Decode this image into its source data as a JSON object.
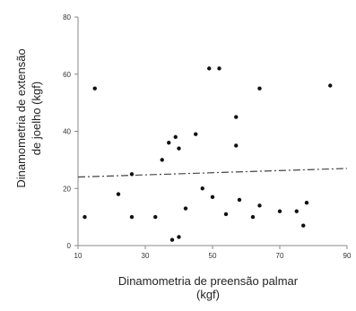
{
  "chart_data": {
    "type": "scatter",
    "title": "",
    "xlabel_lines": [
      "Dinamometria de preensão palmar",
      "(kgf)"
    ],
    "ylabel_lines": [
      "Dinamometria de extensão",
      "de joelho (kgf)"
    ],
    "xlim": [
      10,
      90
    ],
    "ylim": [
      0,
      80
    ],
    "xticks": [
      "10",
      "30",
      "50",
      "70",
      "90"
    ],
    "yticks": [
      "0",
      "20",
      "40",
      "60",
      "80"
    ],
    "grid": false,
    "legend": "none",
    "points": [
      {
        "x": 12,
        "y": 10
      },
      {
        "x": 15,
        "y": 55
      },
      {
        "x": 22,
        "y": 18
      },
      {
        "x": 26,
        "y": 25
      },
      {
        "x": 26,
        "y": 10
      },
      {
        "x": 33,
        "y": 10
      },
      {
        "x": 35,
        "y": 30
      },
      {
        "x": 37,
        "y": 36
      },
      {
        "x": 38,
        "y": 2
      },
      {
        "x": 39,
        "y": 38
      },
      {
        "x": 40,
        "y": 34
      },
      {
        "x": 40,
        "y": 3
      },
      {
        "x": 42,
        "y": 13
      },
      {
        "x": 45,
        "y": 39
      },
      {
        "x": 47,
        "y": 20
      },
      {
        "x": 49,
        "y": 62
      },
      {
        "x": 50,
        "y": 17
      },
      {
        "x": 52,
        "y": 62
      },
      {
        "x": 54,
        "y": 11
      },
      {
        "x": 57,
        "y": 45
      },
      {
        "x": 57,
        "y": 35
      },
      {
        "x": 58,
        "y": 16
      },
      {
        "x": 62,
        "y": 10
      },
      {
        "x": 64,
        "y": 14
      },
      {
        "x": 64,
        "y": 55
      },
      {
        "x": 70,
        "y": 12
      },
      {
        "x": 75,
        "y": 12
      },
      {
        "x": 77,
        "y": 7
      },
      {
        "x": 78,
        "y": 15
      },
      {
        "x": 85,
        "y": 56
      }
    ],
    "trendline": {
      "style": "dash-dot",
      "x": [
        10,
        90
      ],
      "y": [
        24,
        27
      ]
    },
    "colors": {
      "points": "#111111",
      "axes": "#888888",
      "trendline": "#444444",
      "text": "#222222"
    }
  }
}
